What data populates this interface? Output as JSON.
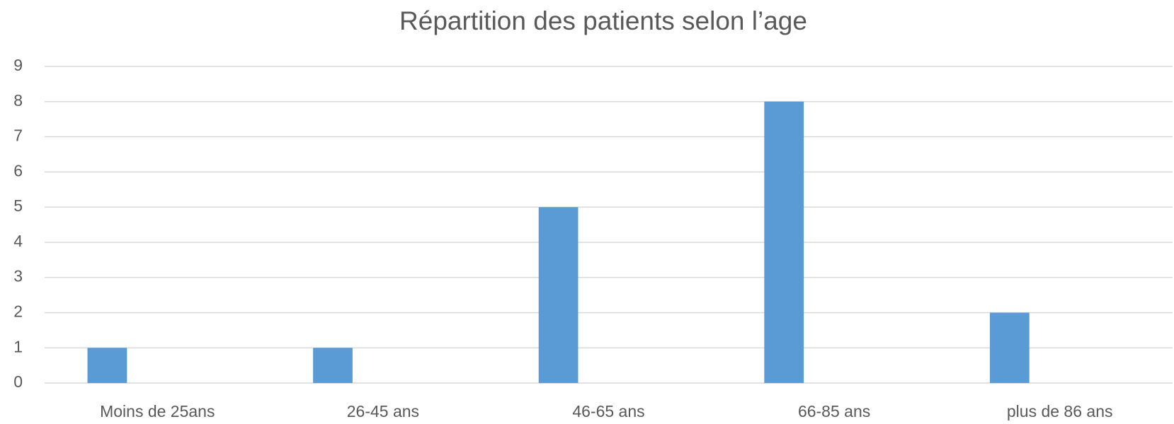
{
  "chart_data": {
    "type": "bar",
    "title": "Répartition des patients selon l’age",
    "categories": [
      "Moins de 25ans",
      "26-45 ans",
      "46-65 ans",
      "66-85 ans",
      "plus de 86 ans"
    ],
    "values": [
      1,
      1,
      5,
      8,
      2
    ],
    "color": "#5b9bd5",
    "ylim": [
      0,
      9
    ],
    "yticks": [
      0,
      1,
      2,
      3,
      4,
      5,
      6,
      7,
      8,
      9
    ],
    "grid": true
  }
}
